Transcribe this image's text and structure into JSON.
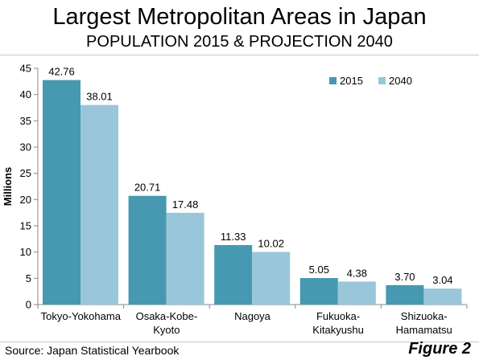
{
  "chart_data": {
    "type": "bar",
    "title": "Largest Metropolitan Areas in Japan",
    "subtitle": "POPULATION 2015 & PROJECTION 2040",
    "categories": [
      [
        "Tokyo-Yokohama"
      ],
      [
        "Osaka-Kobe-",
        "Kyoto"
      ],
      [
        "Nagoya"
      ],
      [
        "Fukuoka-",
        "Kitakyushu"
      ],
      [
        "Shizuoka-",
        "Hamamatsu"
      ]
    ],
    "series": [
      {
        "name": "2015",
        "color": "#4699b0",
        "values": [
          42.76,
          20.71,
          11.33,
          5.05,
          3.7
        ],
        "labels": [
          "42.76",
          "20.71",
          "11.33",
          "5.05",
          "3.70"
        ]
      },
      {
        "name": "2040",
        "color": "#99c7d9",
        "values": [
          38.01,
          17.48,
          10.02,
          4.38,
          3.04
        ],
        "labels": [
          "38.01",
          "17.48",
          "10.02",
          "4.38",
          "3.04"
        ]
      }
    ],
    "xlabel": "",
    "ylabel": "Millions",
    "ylim": [
      0,
      45
    ],
    "yticks": [
      "0",
      "5",
      "10",
      "15",
      "20",
      "25",
      "30",
      "35",
      "40",
      "45"
    ],
    "grid": false,
    "legend_position": "top-right"
  },
  "footer": {
    "source": "Source: Japan Statistical Yearbook",
    "figure": "Figure 2"
  }
}
